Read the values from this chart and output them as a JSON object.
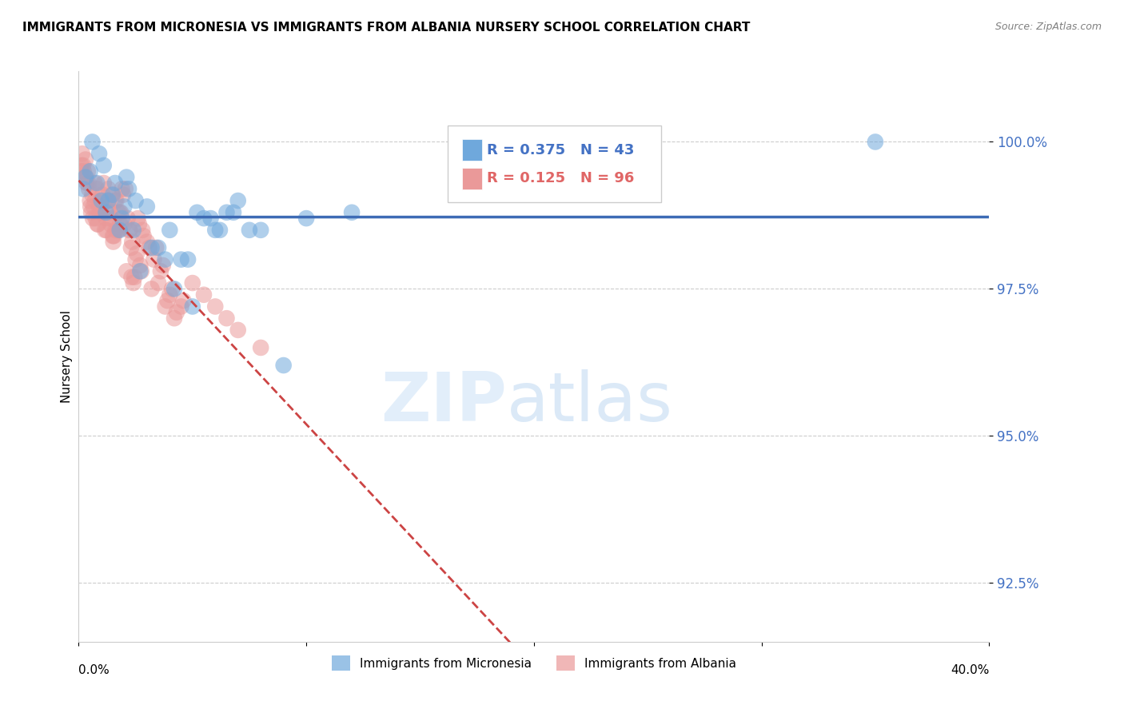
{
  "title": "IMMIGRANTS FROM MICRONESIA VS IMMIGRANTS FROM ALBANIA NURSERY SCHOOL CORRELATION CHART",
  "source": "Source: ZipAtlas.com",
  "ylabel": "Nursery School",
  "yticks": [
    92.5,
    95.0,
    97.5,
    100.0
  ],
  "ytick_labels": [
    "92.5%",
    "95.0%",
    "97.5%",
    "100.0%"
  ],
  "xlim": [
    0.0,
    40.0
  ],
  "ylim": [
    91.5,
    101.2
  ],
  "legend_blue_r": "0.375",
  "legend_blue_n": "43",
  "legend_pink_r": "0.125",
  "legend_pink_n": "96",
  "blue_color": "#6fa8dc",
  "pink_color": "#ea9999",
  "blue_line_color": "#3d6bb5",
  "pink_line_color": "#cc4444",
  "blue_label": "Immigrants from Micronesia",
  "pink_label": "Immigrants from Albania",
  "blue_x": [
    0.2,
    0.5,
    0.8,
    1.0,
    1.2,
    1.5,
    1.8,
    2.0,
    2.2,
    2.5,
    3.0,
    3.5,
    4.0,
    4.5,
    5.0,
    5.5,
    6.0,
    6.5,
    7.0,
    7.5,
    8.0,
    9.0,
    10.0,
    0.3,
    0.6,
    0.9,
    1.1,
    1.3,
    1.6,
    1.9,
    2.1,
    2.4,
    2.7,
    3.2,
    3.8,
    4.2,
    4.8,
    5.2,
    5.8,
    6.2,
    6.8,
    12.0,
    35.0
  ],
  "blue_y": [
    99.2,
    99.5,
    99.3,
    99.0,
    98.8,
    99.1,
    98.5,
    98.9,
    99.2,
    99.0,
    98.9,
    98.2,
    98.5,
    98.0,
    97.2,
    98.7,
    98.5,
    98.8,
    99.0,
    98.5,
    98.5,
    96.2,
    98.7,
    99.4,
    100.0,
    99.8,
    99.6,
    99.0,
    99.3,
    98.7,
    99.4,
    98.5,
    97.8,
    98.2,
    98.0,
    97.5,
    98.0,
    98.8,
    98.7,
    98.5,
    98.8,
    98.8,
    100.0
  ],
  "pink_x": [
    0.1,
    0.2,
    0.3,
    0.4,
    0.5,
    0.6,
    0.7,
    0.8,
    0.9,
    1.0,
    1.1,
    1.2,
    1.3,
    1.4,
    1.5,
    1.6,
    1.7,
    1.8,
    1.9,
    2.0,
    2.1,
    2.2,
    2.3,
    2.4,
    2.5,
    2.6,
    2.7,
    2.8,
    3.0,
    3.2,
    3.4,
    3.6,
    3.8,
    4.0,
    4.2,
    4.5,
    5.0,
    5.5,
    6.0,
    6.5,
    7.0,
    8.0,
    0.15,
    0.25,
    0.35,
    0.45,
    0.55,
    0.65,
    0.75,
    0.85,
    0.95,
    1.05,
    1.15,
    1.25,
    1.35,
    1.45,
    1.55,
    1.65,
    1.75,
    1.85,
    1.95,
    2.05,
    2.15,
    2.25,
    2.35,
    2.45,
    2.55,
    2.65,
    2.75,
    2.85,
    3.1,
    3.3,
    3.5,
    3.7,
    3.9,
    4.1,
    4.3,
    4.6,
    0.12,
    0.22,
    0.32,
    0.42,
    0.52,
    0.62,
    0.72,
    0.82,
    0.92,
    1.02,
    1.22,
    1.32,
    1.42,
    1.52,
    1.62,
    1.72,
    1.82,
    2.32
  ],
  "pink_y": [
    99.5,
    99.6,
    99.7,
    99.5,
    99.0,
    99.1,
    99.3,
    99.2,
    98.9,
    98.8,
    99.3,
    98.7,
    99.2,
    98.6,
    98.4,
    99.0,
    98.5,
    98.8,
    99.2,
    98.6,
    97.8,
    98.5,
    98.2,
    97.6,
    98.0,
    98.7,
    97.9,
    98.5,
    98.3,
    97.5,
    98.2,
    97.8,
    97.2,
    97.4,
    97.0,
    97.2,
    97.6,
    97.4,
    97.2,
    97.0,
    96.8,
    96.5,
    99.8,
    99.4,
    99.3,
    99.2,
    98.8,
    98.9,
    98.7,
    98.6,
    99.0,
    99.1,
    98.5,
    99.0,
    98.8,
    99.1,
    98.4,
    99.0,
    98.5,
    98.8,
    99.1,
    99.2,
    98.7,
    98.5,
    98.3,
    97.7,
    98.1,
    98.6,
    97.8,
    98.4,
    98.2,
    98.0,
    97.6,
    97.9,
    97.3,
    97.5,
    97.1,
    97.3,
    99.6,
    99.5,
    99.4,
    99.3,
    98.9,
    98.7,
    99.0,
    98.6,
    98.8,
    98.9,
    98.5,
    99.0,
    98.7,
    98.3,
    98.5,
    98.8,
    98.6,
    97.7
  ]
}
